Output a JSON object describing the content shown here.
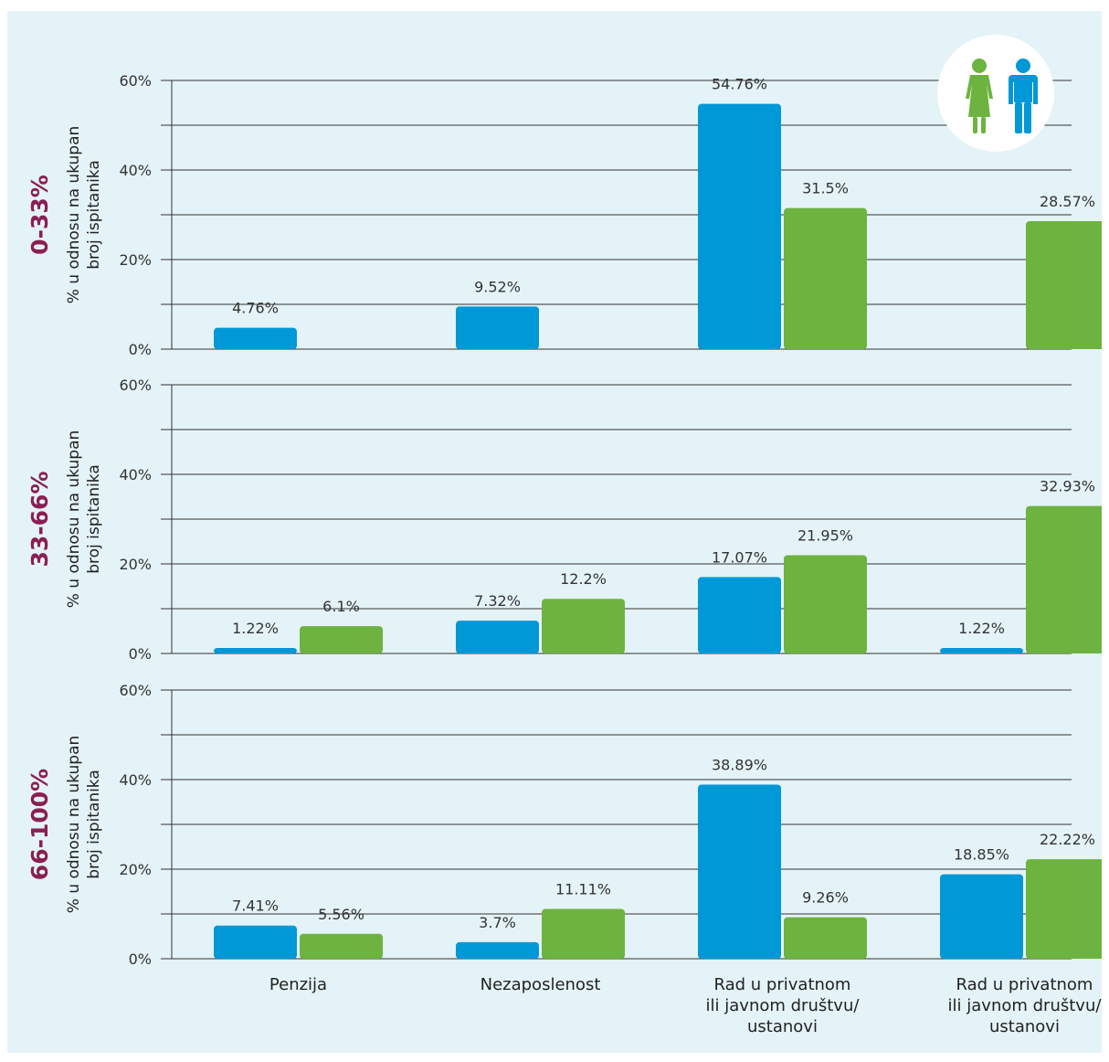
{
  "chart_data": {
    "type": "bar",
    "categories": [
      [
        "Penzija"
      ],
      [
        "Nezaposlenost"
      ],
      [
        "Rad u privatnom",
        "ili javnom društvu/",
        "ustanovi"
      ],
      [
        "Rad u privatnom",
        "ili javnom društvu/",
        "ustanovi"
      ]
    ],
    "ylabel": [
      "% u odnosu na ukupan",
      "broj ispitanika"
    ],
    "ylim": [
      0,
      60
    ],
    "yticks": [
      "0%",
      "20%",
      "40%",
      "60%"
    ],
    "colors": {
      "blue": "#0198d8",
      "green": "#6db33f",
      "panel_label": "#8b1e53",
      "background": "#e4f3f7"
    },
    "legend_icon": "man-and-woman-icon",
    "panels": [
      {
        "label": "0-33%",
        "series": [
          {
            "color": "blue",
            "values": [
              4.76,
              9.52,
              54.76,
              null
            ],
            "labels": [
              "4.76%",
              "9.52%",
              "54.76%",
              ""
            ]
          },
          {
            "color": "green",
            "values": [
              null,
              null,
              31.5,
              28.57
            ],
            "labels": [
              "",
              "",
              "31.5%",
              "28.57%"
            ]
          }
        ]
      },
      {
        "label": "33-66%",
        "series": [
          {
            "color": "blue",
            "values": [
              1.22,
              7.32,
              17.07,
              1.22
            ],
            "labels": [
              "1.22%",
              "7.32%",
              "17.07%",
              "1.22%"
            ]
          },
          {
            "color": "green",
            "values": [
              6.1,
              12.2,
              21.95,
              32.93
            ],
            "labels": [
              "6.1%",
              "12.2%",
              "21.95%",
              "32.93%"
            ]
          }
        ]
      },
      {
        "label": "66-100%",
        "series": [
          {
            "color": "blue",
            "values": [
              7.41,
              3.7,
              38.89,
              18.85
            ],
            "labels": [
              "7.41%",
              "3.7%",
              "38.89%",
              "18.85%"
            ]
          },
          {
            "color": "green",
            "values": [
              5.56,
              11.11,
              9.26,
              22.22
            ],
            "labels": [
              "5.56%",
              "11.11%",
              "9.26%",
              "22.22%"
            ]
          }
        ]
      }
    ]
  }
}
